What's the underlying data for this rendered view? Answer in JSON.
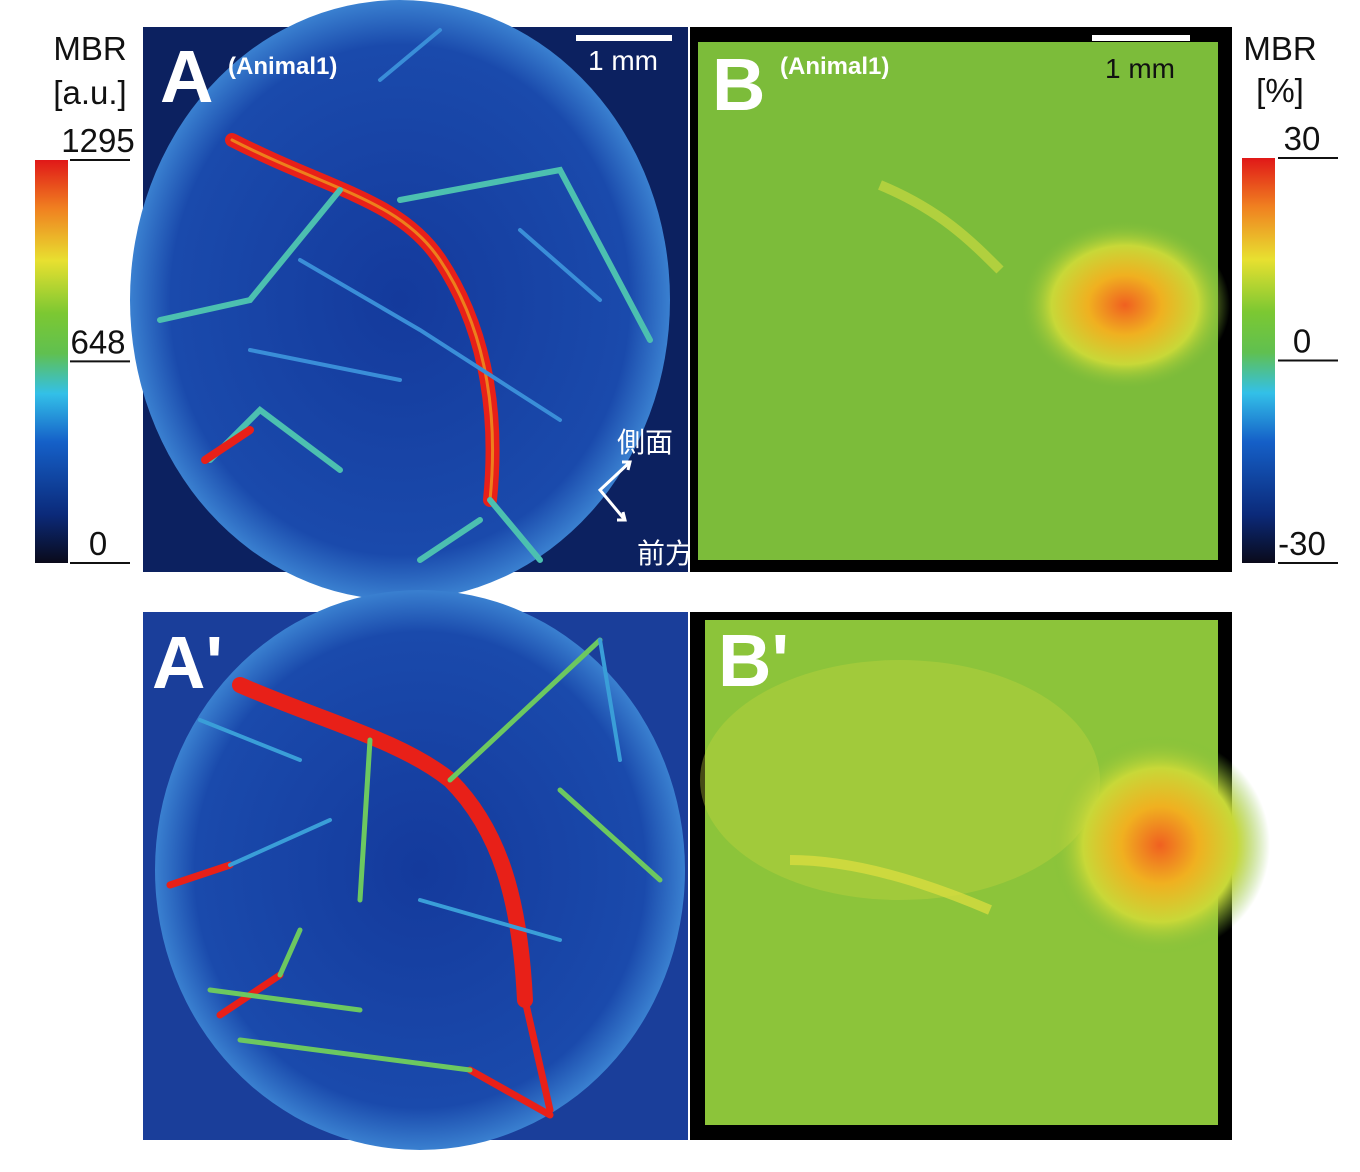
{
  "panels": [
    {
      "label": "A",
      "subtitle": "(Animal1)",
      "scale_bar": "1 mm"
    },
    {
      "label": "B",
      "subtitle": "(Animal1)",
      "scale_bar": "1 mm"
    },
    {
      "label": "A'"
    },
    {
      "label": "B'"
    }
  ],
  "directions": {
    "lateral": "側面",
    "anterior": "前方"
  },
  "colorbars": [
    {
      "title": "MBR",
      "unit": "[a.u.]",
      "lim": [
        0,
        1295
      ],
      "ticks": [
        0,
        648,
        1295
      ]
    },
    {
      "title": "MBR",
      "unit": "[%]",
      "lim": [
        -30,
        30
      ],
      "ticks": [
        -30,
        0,
        30
      ]
    }
  ]
}
